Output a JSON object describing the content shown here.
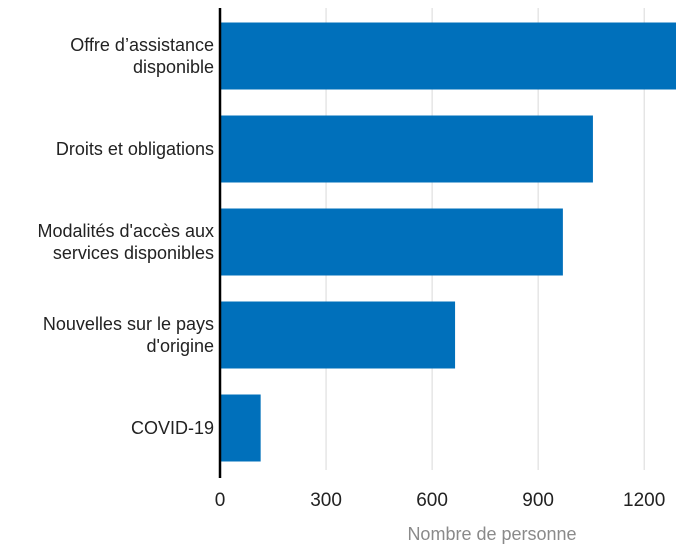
{
  "chart_data": {
    "type": "bar",
    "orientation": "horizontal",
    "categories": [
      [
        "Offre d’assistance",
        "disponible"
      ],
      [
        "Droits et obligations"
      ],
      [
        "Modalités d'accès aux",
        "services disponibles"
      ],
      [
        "Nouvelles sur le pays",
        "d'origine"
      ],
      [
        "COVID-19"
      ]
    ],
    "values": [
      1290,
      1055,
      970,
      665,
      115
    ],
    "xlabel": "Nombre de personne",
    "ylabel": "",
    "xlim": [
      0,
      1290
    ],
    "xticks": [
      0,
      300,
      600,
      900,
      1200
    ],
    "grid": true,
    "bar_color": "#0070bb",
    "grid_color": "#d9d9d9",
    "axis_color": "#000000"
  }
}
